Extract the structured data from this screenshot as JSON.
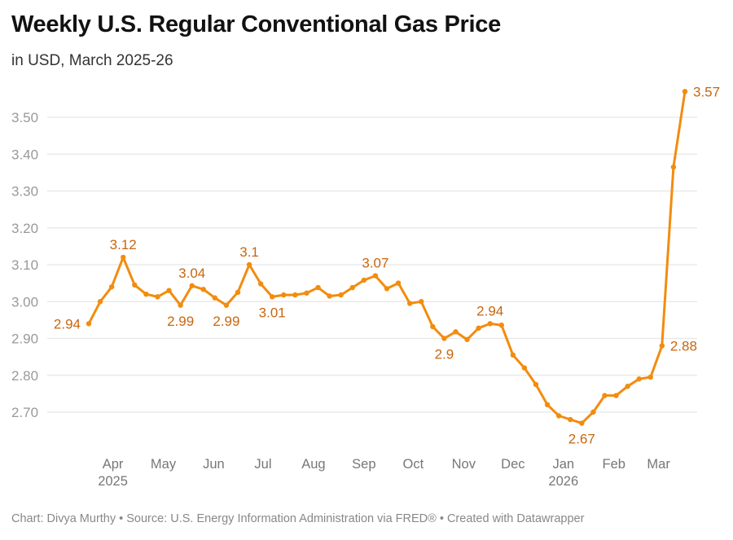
{
  "chart_data": {
    "type": "line",
    "title": "Weekly U.S. Regular Conventional Gas Price",
    "subtitle": "in USD, March 2025-26",
    "xlabel": "",
    "ylabel": "",
    "ylim": [
      2.6,
      3.6
    ],
    "yticks": [
      "2.70",
      "2.80",
      "2.90",
      "3.00",
      "3.10",
      "3.20",
      "3.30",
      "3.40",
      "3.50"
    ],
    "ytick_values": [
      2.7,
      2.8,
      2.9,
      3.0,
      3.1,
      3.2,
      3.3,
      3.4,
      3.5
    ],
    "grid": true,
    "line_color": "#f28c0f",
    "label_color": "#c8660f",
    "xticks": [
      {
        "label": "Apr",
        "sub": "2025",
        "index": 2.1
      },
      {
        "label": "May",
        "sub": "",
        "index": 6.5
      },
      {
        "label": "Jun",
        "sub": "",
        "index": 10.9
      },
      {
        "label": "Jul",
        "sub": "",
        "index": 15.2
      },
      {
        "label": "Aug",
        "sub": "",
        "index": 19.6
      },
      {
        "label": "Sep",
        "sub": "",
        "index": 24.0
      },
      {
        "label": "Oct",
        "sub": "",
        "index": 28.3
      },
      {
        "label": "Nov",
        "sub": "",
        "index": 32.7
      },
      {
        "label": "Dec",
        "sub": "",
        "index": 37.0
      },
      {
        "label": "Jan",
        "sub": "2026",
        "index": 41.4
      },
      {
        "label": "Feb",
        "sub": "",
        "index": 45.8
      },
      {
        "label": "Mar",
        "sub": "",
        "index": 49.7
      }
    ],
    "series": [
      {
        "name": "Regular Conventional Gas Price",
        "values": [
          2.94,
          3.0,
          3.04,
          3.12,
          3.045,
          3.02,
          3.013,
          3.03,
          2.99,
          3.043,
          3.033,
          3.01,
          2.99,
          3.025,
          3.1,
          3.048,
          3.013,
          3.018,
          3.018,
          3.023,
          3.038,
          3.015,
          3.018,
          3.038,
          3.058,
          3.07,
          3.035,
          3.05,
          2.995,
          3.0,
          2.932,
          2.9,
          2.918,
          2.897,
          2.928,
          2.94,
          2.936,
          2.855,
          2.82,
          2.775,
          2.72,
          2.69,
          2.68,
          2.67,
          2.7,
          2.745,
          2.745,
          2.77,
          2.79,
          2.795,
          2.88,
          3.365,
          3.57
        ]
      }
    ],
    "annotations": [
      {
        "index": 0,
        "text": "2.94",
        "pos": "left"
      },
      {
        "index": 3,
        "text": "3.12",
        "pos": "above"
      },
      {
        "index": 8,
        "text": "2.99",
        "pos": "below"
      },
      {
        "index": 9,
        "text": "3.04",
        "pos": "above"
      },
      {
        "index": 12,
        "text": "2.99",
        "pos": "below"
      },
      {
        "index": 14,
        "text": "3.1",
        "pos": "above"
      },
      {
        "index": 16,
        "text": "3.01",
        "pos": "below"
      },
      {
        "index": 25,
        "text": "3.07",
        "pos": "above"
      },
      {
        "index": 31,
        "text": "2.9",
        "pos": "below"
      },
      {
        "index": 35,
        "text": "2.94",
        "pos": "above"
      },
      {
        "index": 43,
        "text": "2.67",
        "pos": "below"
      },
      {
        "index": 50,
        "text": "2.88",
        "pos": "right"
      },
      {
        "index": 52,
        "text": "3.57",
        "pos": "right"
      }
    ]
  },
  "footer": "Chart: Divya Murthy • Source: U.S. Energy Information Administration via FRED® • Created with Datawrapper"
}
